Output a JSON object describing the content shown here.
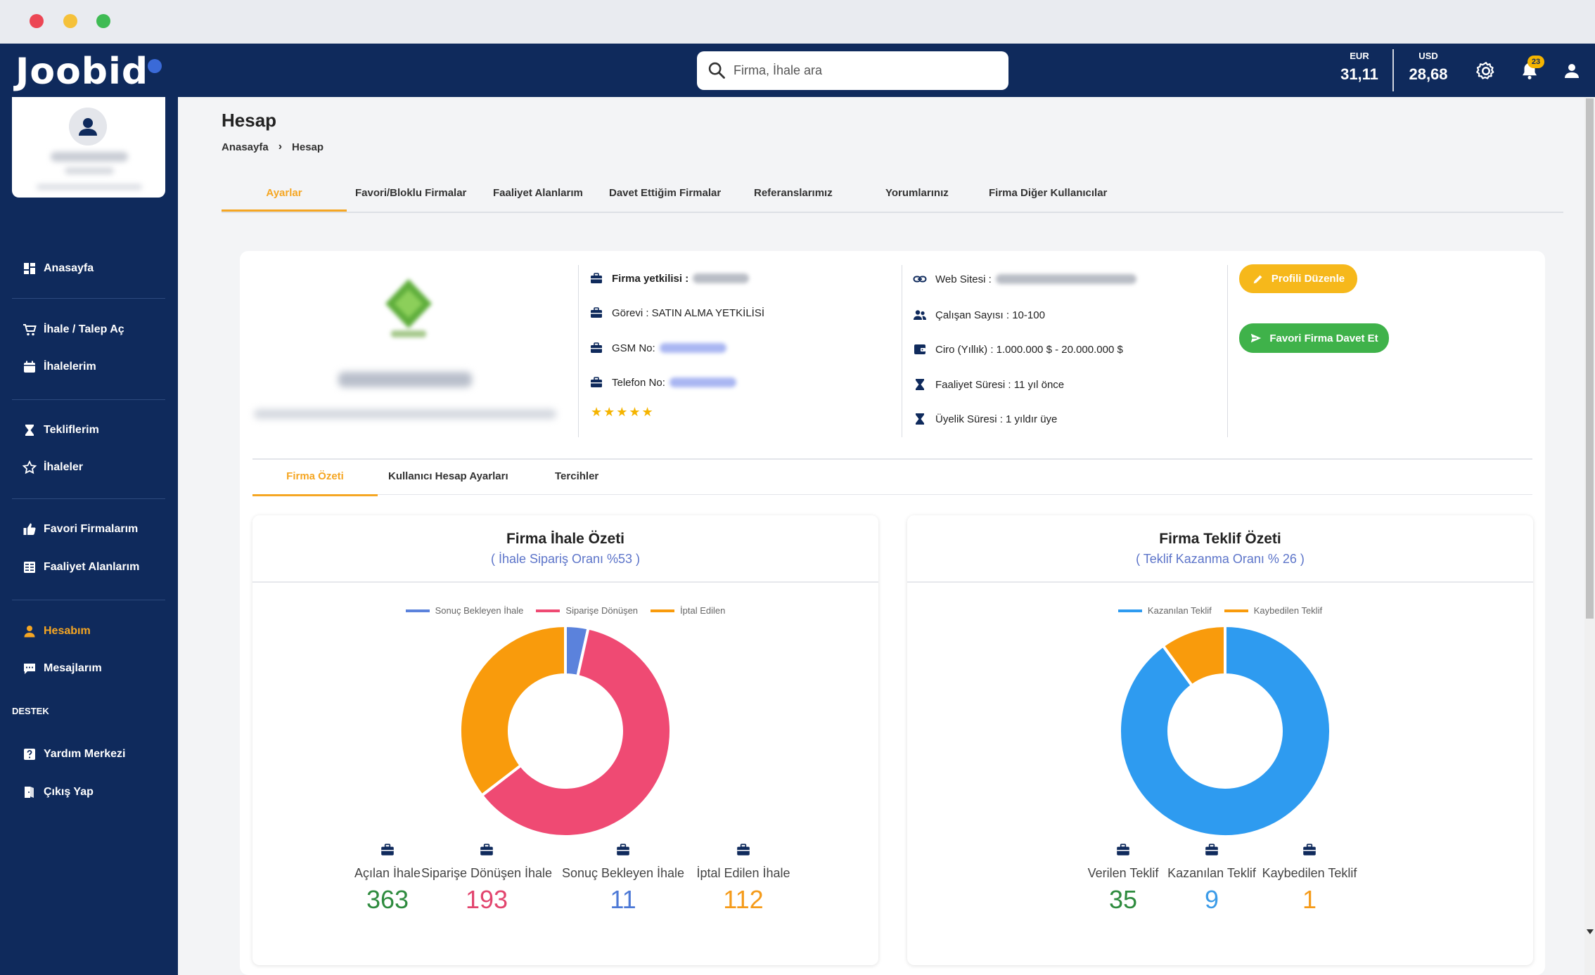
{
  "brand": {
    "name": "Joobid"
  },
  "search": {
    "placeholder": "Firma, İhale ara"
  },
  "rates": [
    {
      "label": "EUR",
      "value": "31,11"
    },
    {
      "label": "USD",
      "value": "28,68"
    }
  ],
  "notifications": {
    "count": "23"
  },
  "sidebar": {
    "items": [
      {
        "label": "Anasayfa",
        "icon": "dashboard-icon"
      },
      {
        "label": "İhale / Talep Aç",
        "icon": "cart-icon"
      },
      {
        "label": "İhalelerim",
        "icon": "calendar-icon"
      },
      {
        "label": "Tekliflerim",
        "icon": "hourglass-icon"
      },
      {
        "label": "İhaleler",
        "icon": "star-icon"
      },
      {
        "label": "Favori Firmalarım",
        "icon": "thumbs-up-icon"
      },
      {
        "label": "Faaliyet Alanlarım",
        "icon": "grid-icon"
      },
      {
        "label": "Hesabım",
        "icon": "user-icon"
      },
      {
        "label": "Mesajlarım",
        "icon": "message-icon"
      },
      {
        "label": "Yardım Merkezi",
        "icon": "help-icon"
      },
      {
        "label": "Çıkış Yap",
        "icon": "logout-icon"
      }
    ],
    "section_support": "DESTEK"
  },
  "page": {
    "title": "Hesap",
    "breadcrumb": [
      "Anasayfa",
      "Hesap"
    ]
  },
  "tabs": [
    "Ayarlar",
    "Favori/Bloklu Firmalar",
    "Faaliyet Alanlarım",
    "Davet Ettiğim Firmalar",
    "Referanslarımız",
    "Yorumlarınız",
    "Firma Diğer Kullanıcılar"
  ],
  "company": {
    "rows_left": [
      {
        "label": "Firma yetkilisi :",
        "value": ""
      },
      {
        "label": "Görevi : SATIN ALMA YETKİLİSİ",
        "value": ""
      },
      {
        "label": "GSM No:",
        "value": ""
      },
      {
        "label": "Telefon No:",
        "value": ""
      }
    ],
    "stars": "★★★★★",
    "rows_right": [
      {
        "label": "Web Sitesi :",
        "icon": "link-icon"
      },
      {
        "label": "Çalışan Sayısı : 10-100",
        "icon": "users-icon"
      },
      {
        "label": "Ciro (Yıllık) : 1.000.000 $ - 20.000.000 $",
        "icon": "wallet-icon"
      },
      {
        "label": "Faaliyet Süresi : 11 yıl önce",
        "icon": "hourglass-icon"
      },
      {
        "label": "Üyelik Süresi : 1 yıldır üye",
        "icon": "hourglass-icon"
      }
    ],
    "buttons": {
      "edit": "Profili Düzenle",
      "invite": "Favori Firma Davet Et"
    }
  },
  "subtabs": [
    "Firma Özeti",
    "Kullanıcı Hesap Ayarları",
    "Tercihler"
  ],
  "panels": {
    "left": {
      "title": "Firma İhale Özeti",
      "subtitle": "( İhale Sipariş Oranı %53 )",
      "stats": [
        {
          "label": "Açılan İhale",
          "value": "363",
          "color": "#2e8b3e"
        },
        {
          "label": "Siparişe Dönüşen İhale",
          "value": "193",
          "color": "#e2456e"
        },
        {
          "label": "Sonuç Bekleyen İhale",
          "value": "11",
          "color": "#4d79d6"
        },
        {
          "label": "İptal Edilen İhale",
          "value": "112",
          "color": "#f59b1a"
        }
      ]
    },
    "right": {
      "title": "Firma Teklif Özeti",
      "subtitle": "( Teklif Kazanma Oranı % 26 )",
      "stats": [
        {
          "label": "Verilen Teklif",
          "value": "35",
          "color": "#2e8b3e"
        },
        {
          "label": "Kazanılan Teklif",
          "value": "9",
          "color": "#3b9be8"
        },
        {
          "label": "Kaybedilen Teklif",
          "value": "1",
          "color": "#f59b1a"
        }
      ]
    }
  },
  "chart_data": [
    {
      "type": "pie",
      "categories": [
        "Sonuç Bekleyen İhale",
        "Siparişe Dönüşen",
        "İptal Edilen"
      ],
      "values": [
        11,
        193,
        112
      ],
      "colors": [
        "#5b82dc",
        "#ef4a73",
        "#f99b0c"
      ],
      "legend": "top"
    },
    {
      "type": "pie",
      "categories": [
        "Kazanılan Teklif",
        "Kaybedilen Teklif"
      ],
      "values": [
        9,
        1
      ],
      "colors": [
        "#2e9bf0",
        "#f99b0c"
      ],
      "legend": "top"
    }
  ]
}
